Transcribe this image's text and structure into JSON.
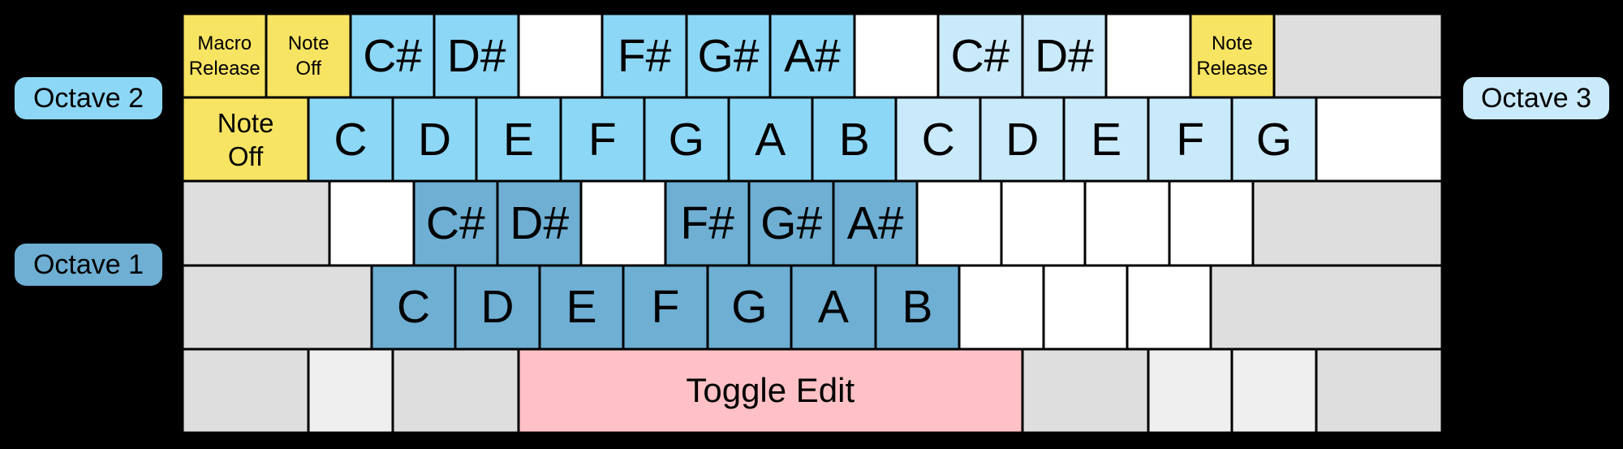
{
  "colors": {
    "background": "#000000",
    "octave1": "#6EAFD3",
    "octave2": "#8DD7F6",
    "octave3": "#C9EAFB",
    "yellow": "#F8E463",
    "pink": "#FFC1C5",
    "gray": "#DEDEDE",
    "grayLight": "#EFEFEF",
    "white": "#FFFFFF",
    "border": "#000000"
  },
  "labels": {
    "octave1": "Octave 1",
    "octave2": "Octave 2",
    "octave3": "Octave 3"
  },
  "keyboard": {
    "rows": [
      {
        "name": "number-row",
        "keys": [
          {
            "name": "key-macro-release",
            "label": "Macro\nRelease",
            "color": "yellow",
            "units": 1,
            "size": "small"
          },
          {
            "name": "key-note-off-1",
            "label": "Note\nOff",
            "color": "yellow",
            "units": 1,
            "size": "small"
          },
          {
            "name": "key-csharp-octave2",
            "label": "C#",
            "color": "octave2",
            "units": 1,
            "size": "note"
          },
          {
            "name": "key-dsharp-octave2",
            "label": "D#",
            "color": "octave2",
            "units": 1,
            "size": "note"
          },
          {
            "name": "key-unmapped",
            "label": "",
            "color": "white",
            "units": 1
          },
          {
            "name": "key-fsharp-octave2",
            "label": "F#",
            "color": "octave2",
            "units": 1,
            "size": "note"
          },
          {
            "name": "key-gsharp-octave2",
            "label": "G#",
            "color": "octave2",
            "units": 1,
            "size": "note"
          },
          {
            "name": "key-asharp-octave2",
            "label": "A#",
            "color": "octave2",
            "units": 1,
            "size": "note"
          },
          {
            "name": "key-unmapped",
            "label": "",
            "color": "white",
            "units": 1
          },
          {
            "name": "key-csharp-octave3",
            "label": "C#",
            "color": "octave3",
            "units": 1,
            "size": "note"
          },
          {
            "name": "key-dsharp-octave3",
            "label": "D#",
            "color": "octave3",
            "units": 1,
            "size": "note"
          },
          {
            "name": "key-unmapped",
            "label": "",
            "color": "white",
            "units": 1
          },
          {
            "name": "key-note-release",
            "label": "Note\nRelease",
            "color": "yellow",
            "units": 1,
            "size": "small"
          },
          {
            "name": "key-backspace-unused",
            "label": "",
            "color": "gray",
            "units": 2
          }
        ]
      },
      {
        "name": "tab-row",
        "keys": [
          {
            "name": "key-note-off-tab",
            "label": "Note\nOff",
            "color": "yellow",
            "units": 1.5,
            "size": "medium"
          },
          {
            "name": "key-c-octave2",
            "label": "C",
            "color": "octave2",
            "units": 1,
            "size": "note"
          },
          {
            "name": "key-d-octave2",
            "label": "D",
            "color": "octave2",
            "units": 1,
            "size": "note"
          },
          {
            "name": "key-e-octave2",
            "label": "E",
            "color": "octave2",
            "units": 1,
            "size": "note"
          },
          {
            "name": "key-f-octave2",
            "label": "F",
            "color": "octave2",
            "units": 1,
            "size": "note"
          },
          {
            "name": "key-g-octave2",
            "label": "G",
            "color": "octave2",
            "units": 1,
            "size": "note"
          },
          {
            "name": "key-a-octave2",
            "label": "A",
            "color": "octave2",
            "units": 1,
            "size": "note"
          },
          {
            "name": "key-b-octave2",
            "label": "B",
            "color": "octave2",
            "units": 1,
            "size": "note"
          },
          {
            "name": "key-c-octave3",
            "label": "C",
            "color": "octave3",
            "units": 1,
            "size": "note"
          },
          {
            "name": "key-d-octave3",
            "label": "D",
            "color": "octave3",
            "units": 1,
            "size": "note"
          },
          {
            "name": "key-e-octave3",
            "label": "E",
            "color": "octave3",
            "units": 1,
            "size": "note"
          },
          {
            "name": "key-f-octave3",
            "label": "F",
            "color": "octave3",
            "units": 1,
            "size": "note"
          },
          {
            "name": "key-g-octave3",
            "label": "G",
            "color": "octave3",
            "units": 1,
            "size": "note"
          },
          {
            "name": "key-unmapped",
            "label": "",
            "color": "white",
            "units": 1.5
          }
        ]
      },
      {
        "name": "home-row",
        "keys": [
          {
            "name": "key-capslock-unused",
            "label": "",
            "color": "gray",
            "units": 1.75
          },
          {
            "name": "key-unmapped",
            "label": "",
            "color": "white",
            "units": 1
          },
          {
            "name": "key-csharp-octave1",
            "label": "C#",
            "color": "octave1",
            "units": 1,
            "size": "note"
          },
          {
            "name": "key-dsharp-octave1",
            "label": "D#",
            "color": "octave1",
            "units": 1,
            "size": "note"
          },
          {
            "name": "key-unmapped",
            "label": "",
            "color": "white",
            "units": 1
          },
          {
            "name": "key-fsharp-octave1",
            "label": "F#",
            "color": "octave1",
            "units": 1,
            "size": "note"
          },
          {
            "name": "key-gsharp-octave1",
            "label": "G#",
            "color": "octave1",
            "units": 1,
            "size": "note"
          },
          {
            "name": "key-asharp-octave1",
            "label": "A#",
            "color": "octave1",
            "units": 1,
            "size": "note"
          },
          {
            "name": "key-unmapped",
            "label": "",
            "color": "white",
            "units": 1
          },
          {
            "name": "key-unmapped",
            "label": "",
            "color": "white",
            "units": 1
          },
          {
            "name": "key-unmapped",
            "label": "",
            "color": "white",
            "units": 1
          },
          {
            "name": "key-unmapped",
            "label": "",
            "color": "white",
            "units": 1
          },
          {
            "name": "key-enter-unused",
            "label": "",
            "color": "gray",
            "units": 2.25
          }
        ]
      },
      {
        "name": "shift-row",
        "keys": [
          {
            "name": "key-left-shift-unused",
            "label": "",
            "color": "gray",
            "units": 2.25
          },
          {
            "name": "key-c-octave1",
            "label": "C",
            "color": "octave1",
            "units": 1,
            "size": "note"
          },
          {
            "name": "key-d-octave1",
            "label": "D",
            "color": "octave1",
            "units": 1,
            "size": "note"
          },
          {
            "name": "key-e-octave1",
            "label": "E",
            "color": "octave1",
            "units": 1,
            "size": "note"
          },
          {
            "name": "key-f-octave1",
            "label": "F",
            "color": "octave1",
            "units": 1,
            "size": "note"
          },
          {
            "name": "key-g-octave1",
            "label": "G",
            "color": "octave1",
            "units": 1,
            "size": "note"
          },
          {
            "name": "key-a-octave1",
            "label": "A",
            "color": "octave1",
            "units": 1,
            "size": "note"
          },
          {
            "name": "key-b-octave1",
            "label": "B",
            "color": "octave1",
            "units": 1,
            "size": "note"
          },
          {
            "name": "key-unmapped",
            "label": "",
            "color": "white",
            "units": 1
          },
          {
            "name": "key-unmapped",
            "label": "",
            "color": "white",
            "units": 1
          },
          {
            "name": "key-unmapped",
            "label": "",
            "color": "white",
            "units": 1
          },
          {
            "name": "key-right-shift-unused",
            "label": "",
            "color": "gray",
            "units": 2.75
          }
        ]
      },
      {
        "name": "bottom-row",
        "keys": [
          {
            "name": "key-modifier-unused",
            "label": "",
            "color": "gray",
            "units": 1.5
          },
          {
            "name": "key-modifier-unused",
            "label": "",
            "color": "grayLight",
            "units": 1
          },
          {
            "name": "key-modifier-unused",
            "label": "",
            "color": "gray",
            "units": 1.5
          },
          {
            "name": "key-space-toggle-edit",
            "label": "Toggle Edit",
            "color": "pink",
            "units": 6,
            "size": "large"
          },
          {
            "name": "key-modifier-unused",
            "label": "",
            "color": "gray",
            "units": 1.5
          },
          {
            "name": "key-modifier-unused",
            "label": "",
            "color": "grayLight",
            "units": 1
          },
          {
            "name": "key-modifier-unused",
            "label": "",
            "color": "grayLight",
            "units": 1
          },
          {
            "name": "key-modifier-unused",
            "label": "",
            "color": "gray",
            "units": 1.5
          }
        ]
      }
    ]
  }
}
